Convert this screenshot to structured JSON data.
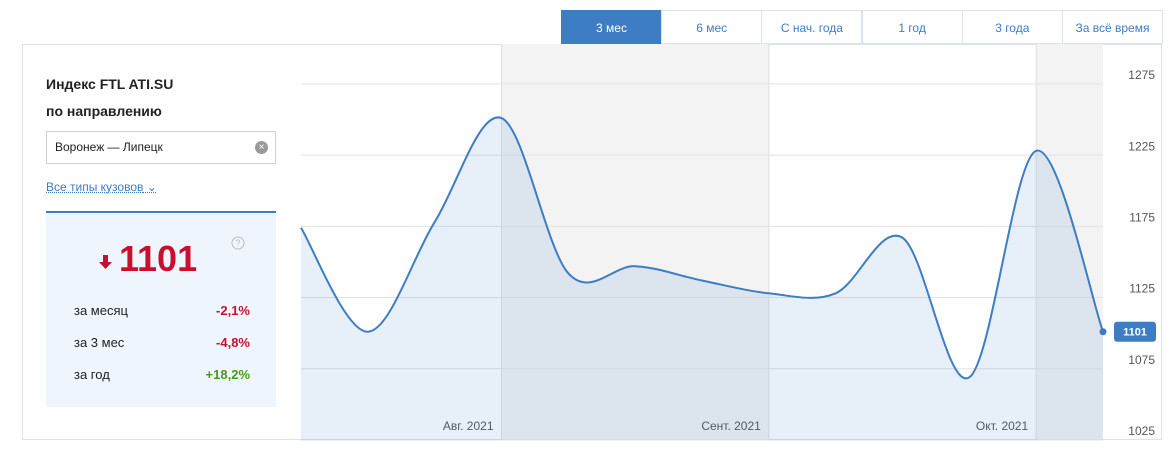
{
  "tabs": [
    "3 мес",
    "6 мес",
    "С нач. года",
    "1 год",
    "3 года",
    "За всё время"
  ],
  "active_tab": 0,
  "panel": {
    "title_line1": "Индекс FTL ATI.SU",
    "title_line2": "по направлению",
    "route": "Воронеж — Липецк",
    "body_types": "Все типы кузовов",
    "index": "1101",
    "index_color": "#c8102e",
    "rows": [
      {
        "label": "за месяц",
        "change": "-2,1%",
        "color": "#c8102e"
      },
      {
        "label": "за 3 мес",
        "change": "-4,8%",
        "color": "#c8102e"
      },
      {
        "label": "за год",
        "change": "+18,2%",
        "color": "#4a9a1a"
      }
    ]
  },
  "chart_data": {
    "type": "area",
    "categories": [
      null,
      null,
      null,
      "Авг. 2021",
      null,
      null,
      null,
      "Сент. 2021",
      null,
      null,
      null,
      "Окт. 2021",
      null
    ],
    "values": [
      1174,
      1101,
      1178,
      1251,
      1142,
      1147,
      1137,
      1128,
      1128,
      1167,
      1069,
      1228,
      1101
    ],
    "color": "#3d7dc4",
    "ylim": [
      1025,
      1303
    ],
    "yticks": [
      1025,
      1075,
      1125,
      1175,
      1225,
      1275
    ],
    "grid": true
  }
}
